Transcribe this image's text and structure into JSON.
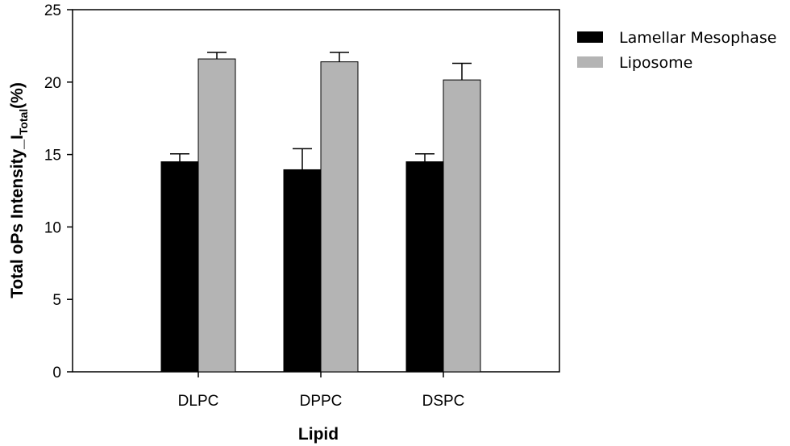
{
  "chart_data": {
    "type": "bar",
    "categories": [
      "DLPC",
      "DPPC",
      "DSPC"
    ],
    "series": [
      {
        "name": "Lamellar Mesophase",
        "values": [
          14.5,
          13.95,
          14.5
        ],
        "errors": [
          0.55,
          1.45,
          0.55
        ],
        "color": "#000000"
      },
      {
        "name": "Liposome",
        "values": [
          21.6,
          21.4,
          20.15
        ],
        "errors": [
          0.45,
          0.65,
          1.15
        ],
        "color": "#b4b4b4"
      }
    ],
    "ylim": [
      0,
      25
    ],
    "yticks": [
      0,
      5,
      10,
      15,
      20,
      25
    ],
    "xlabel": "Lipid",
    "ylabel_main": "Total oPs Intensity_I",
    "ylabel_sub": "Total",
    "ylabel_suffix": "(%)",
    "legend_position": "top-right",
    "grid": false
  }
}
